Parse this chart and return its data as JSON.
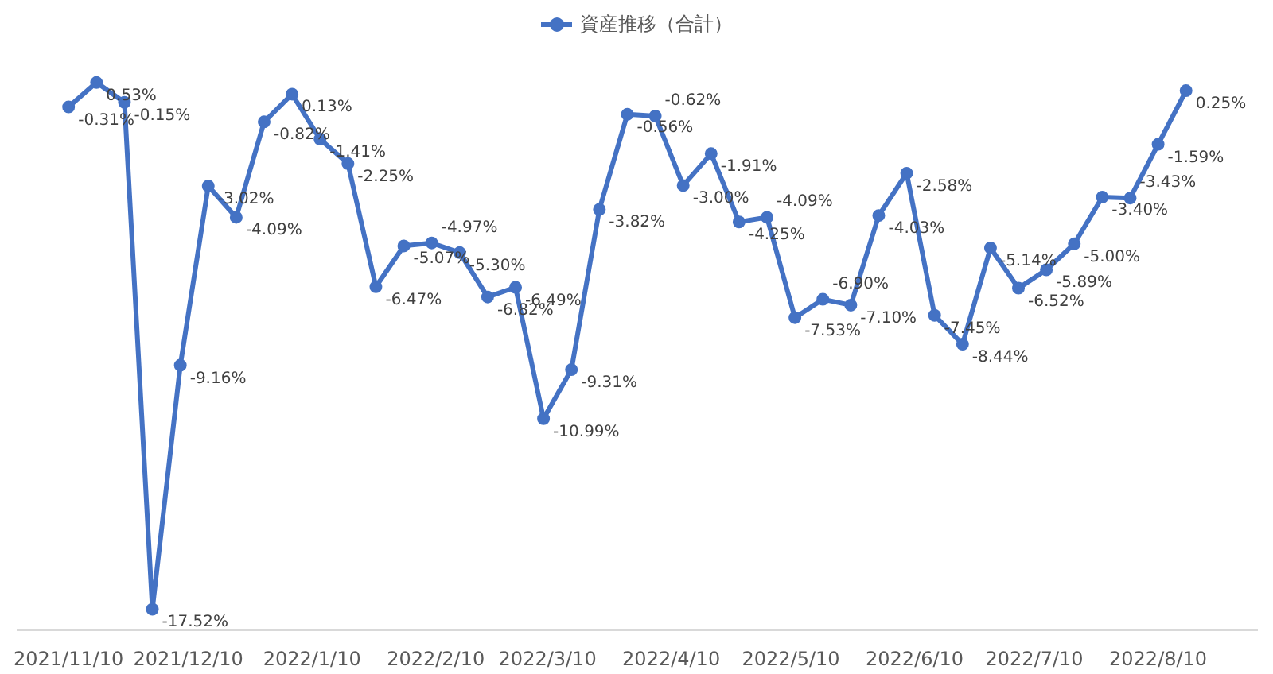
{
  "chart_data": {
    "type": "line",
    "legend": "top",
    "marker": "circle",
    "line_style": "solid",
    "tick_labels": "x",
    "grid": false,
    "xlim": [
      "2021-10-28",
      "2022-09-04"
    ],
    "x": [
      "2021-11-10",
      "2021-11-17",
      "2021-11-24",
      "2021-12-01",
      "2021-12-08",
      "2021-12-15",
      "2021-12-22",
      "2021-12-29",
      "2022-01-05",
      "2022-01-12",
      "2022-01-19",
      "2022-01-26",
      "2022-02-02",
      "2022-02-09",
      "2022-02-16",
      "2022-02-23",
      "2022-03-02",
      "2022-03-09",
      "2022-03-16",
      "2022-03-23",
      "2022-03-30",
      "2022-04-06",
      "2022-04-13",
      "2022-04-20",
      "2022-04-27",
      "2022-05-04",
      "2022-05-11",
      "2022-05-18",
      "2022-05-25",
      "2022-06-01",
      "2022-06-08",
      "2022-06-15",
      "2022-06-22",
      "2022-06-29",
      "2022-07-06",
      "2022-07-13",
      "2022-07-20",
      "2022-07-27",
      "2022-08-03",
      "2022-08-10",
      "2022-08-17"
    ],
    "xticks": [
      {
        "value": "2021-11-10",
        "label": "2021/11/10"
      },
      {
        "value": "2021-12-10",
        "label": "2021/12/10"
      },
      {
        "value": "2022-01-10",
        "label": "2022/1/10"
      },
      {
        "value": "2022-02-10",
        "label": "2022/2/10"
      },
      {
        "value": "2022-03-10",
        "label": "2022/3/10"
      },
      {
        "value": "2022-04-10",
        "label": "2022/4/10"
      },
      {
        "value": "2022-05-10",
        "label": "2022/5/10"
      },
      {
        "value": "2022-06-10",
        "label": "2022/6/10"
      },
      {
        "value": "2022-07-10",
        "label": "2022/7/10"
      },
      {
        "value": "2022-08-10",
        "label": "2022/8/10"
      }
    ],
    "series": [
      {
        "name": "資産推移（合計）",
        "color": "#4472c4",
        "values": [
          -0.31,
          0.53,
          -0.15,
          -17.52,
          -9.16,
          -3.02,
          -4.09,
          -0.82,
          0.13,
          -1.41,
          -2.25,
          -6.47,
          -5.07,
          -4.97,
          -5.3,
          -6.82,
          -6.49,
          -10.99,
          -9.31,
          -3.82,
          -0.56,
          -0.62,
          -3.0,
          -1.91,
          -4.25,
          -4.09,
          -7.53,
          -6.9,
          -7.1,
          -4.03,
          -2.58,
          -7.45,
          -8.44,
          -5.14,
          -6.52,
          -5.89,
          -5.0,
          -3.4,
          -3.43,
          -1.59,
          0.25
        ],
        "value_labels": [
          "-0.31%",
          "0.53%",
          "-0.15%",
          "-17.52%",
          "-9.16%",
          "-3.02%",
          "-4.09%",
          "-0.82%",
          "0.13%",
          "-1.41%",
          "-2.25%",
          "-6.47%",
          "-5.07%",
          "-4.97%",
          "-5.30%",
          "-6.82%",
          "-6.49%",
          "-10.99%",
          "-9.31%",
          "-3.82%",
          "-0.56%",
          "-0.62%",
          "-3.00%",
          "-1.91%",
          "-4.25%",
          "-4.09%",
          "-7.53%",
          "-6.90%",
          "-7.10%",
          "-4.03%",
          "-2.58%",
          "-7.45%",
          "-8.44%",
          "-5.14%",
          "-6.52%",
          "-5.89%",
          "-5.00%",
          "-3.40%",
          "-3.43%",
          "-1.59%",
          "0.25%"
        ]
      }
    ]
  }
}
